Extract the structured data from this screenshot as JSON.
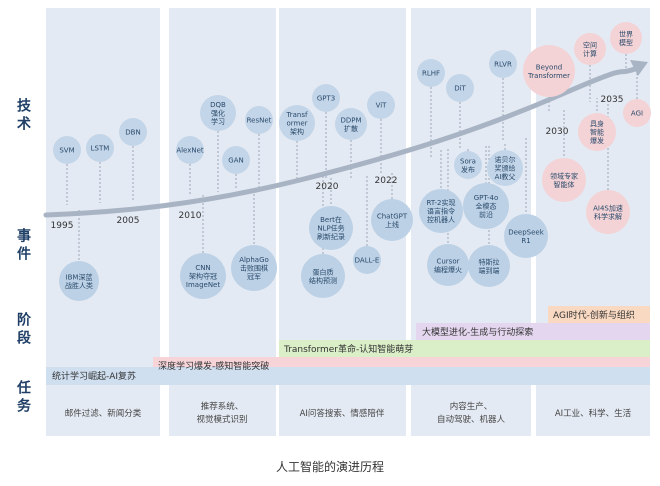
{
  "row_labels": {
    "tech": "技术",
    "event": "事件",
    "stage": "阶段",
    "task": "任务"
  },
  "year_labels": [
    "1995",
    "2005",
    "2010",
    "2020",
    "2022",
    "2030",
    "2035"
  ],
  "tech_nodes": [
    [
      "SVM"
    ],
    [
      "LSTM"
    ],
    [
      "DBN"
    ],
    [
      "AlexNet"
    ],
    [
      "DQB",
      "强化",
      "学习"
    ],
    [
      "GAN"
    ],
    [
      "ResNet"
    ],
    [
      "Transf",
      "ormer",
      "架构"
    ],
    [
      "GPT3"
    ],
    [
      "DDPM",
      "扩散"
    ],
    [
      "ViT"
    ],
    [
      "RLHF"
    ],
    [
      "DiT"
    ],
    [
      "RLVR"
    ],
    [
      "Sora",
      "发布"
    ],
    [
      "诺贝尔",
      "奖颁给",
      "AI教父"
    ],
    [
      "Beyond",
      "Transformer"
    ],
    [
      "空间",
      "计算"
    ],
    [
      "世界",
      "模型"
    ],
    [
      "具身",
      "智能",
      "爆发"
    ],
    [
      "AGI"
    ]
  ],
  "event_nodes": [
    [
      "IBM深蓝",
      "战胜人类"
    ],
    [
      "CNN",
      "架构夺冠",
      "ImageNet"
    ],
    [
      "AlphaGo",
      "击败围棋",
      "冠军"
    ],
    [
      "Bert在",
      "NLP任务",
      "刷新纪录"
    ],
    [
      "蛋白质",
      "结构预测"
    ],
    [
      "DALL-E"
    ],
    [
      "ChatGPT",
      "上线"
    ],
    [
      "RT-2实现",
      "语言指令",
      "控机器人"
    ],
    [
      "GPT-4o",
      "全模态",
      "前沿"
    ],
    [
      "Cursor",
      "编程爆火"
    ],
    [
      "特斯拉",
      "端到端"
    ],
    [
      "DeepSeek",
      "R1"
    ],
    [
      "领域专家",
      "智能体"
    ],
    [
      "AI4S加速",
      "科学求解"
    ]
  ],
  "stages": [
    "统计学习崛起-AI复苏",
    "深度学习爆发-感知智能突破",
    "Transformer革命-认知智能萌芽",
    "大模型进化-生成与行动探索",
    "AGI时代-创新与组织"
  ],
  "tasks": [
    [
      "邮件过滤、新闻分类"
    ],
    [
      "推荐系统、",
      "视觉模式识别"
    ],
    [
      "AI问答搜索、情感陪伴"
    ],
    [
      "内容生产、",
      "自动驾驶、机器人"
    ],
    [
      "AI工业、科学、生活"
    ]
  ],
  "caption": "人工智能的演进历程",
  "colors": {
    "column_bg": "#e4eaf3",
    "tech_bubble": "#c3d5e8",
    "event_bubble": "#bcd1e6",
    "future_bubble": "#f3d3d6",
    "trend_line": "#a8b4c4",
    "stage_bands": [
      "#cfdff0",
      "#f6d4d8",
      "#daeec7",
      "#e3d6ee",
      "#f9d9c2"
    ]
  }
}
